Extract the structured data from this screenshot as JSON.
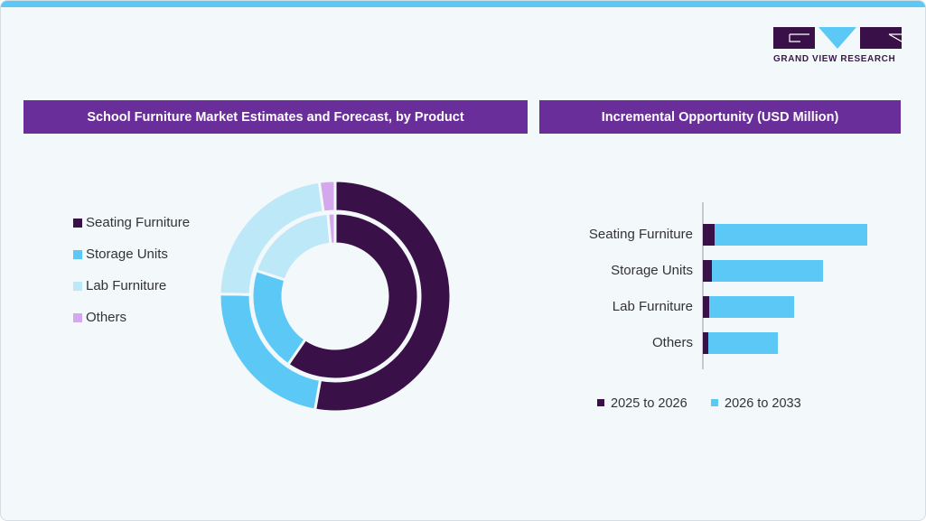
{
  "brand": {
    "name": "GRAND VIEW RESEARCH",
    "colors": {
      "accent": "#5bc8f5",
      "header": "#6a2e9a",
      "dark": "#3a1048"
    }
  },
  "left_panel": {
    "title": "School Furniture Market Estimates and Forecast, by Product"
  },
  "right_panel": {
    "title": "Incremental Opportunity (USD Million)"
  },
  "chart_data": [
    {
      "type": "pie",
      "subtype": "nested-donut",
      "categories": [
        "Seating Furniture",
        "Storage Units",
        "Lab Furniture",
        "Others"
      ],
      "colors": [
        "#3a1048",
        "#5bc8f5",
        "#bde8f8",
        "#d4a8ec"
      ],
      "rings": [
        {
          "name": "outer",
          "values": [
            52.8,
            22.5,
            22.5,
            2.2
          ]
        },
        {
          "name": "inner",
          "values": [
            59.6,
            20.4,
            18.6,
            1.4
          ]
        }
      ],
      "legend": "left"
    },
    {
      "type": "bar",
      "orientation": "horizontal",
      "stacked": true,
      "categories": [
        "Seating Furniture",
        "Storage Units",
        "Lab Furniture",
        "Others"
      ],
      "series": [
        {
          "name": "2025 to 2026",
          "color": "#3a1048",
          "values": [
            13,
            10,
            7,
            6
          ]
        },
        {
          "name": "2026 to 2033",
          "color": "#5bc8f5",
          "values": [
            169,
            123,
            94,
            77
          ]
        }
      ],
      "xlim": [
        0,
        182
      ],
      "grid": false,
      "legend": "bottom"
    }
  ]
}
